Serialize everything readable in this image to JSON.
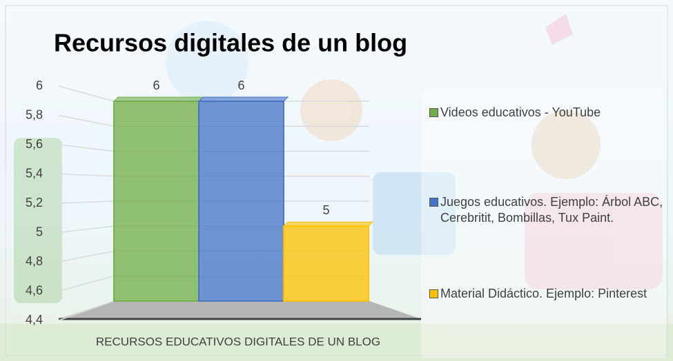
{
  "chart_data": {
    "type": "bar3d",
    "title": "Recursos digitales de un blog",
    "categories": [
      "RECURSOS EDUCATIVOS DIGITALES DE UN BLOG"
    ],
    "series": [
      {
        "name": "Videos educativos - YouTube",
        "color": "#70ad47",
        "values": [
          6
        ]
      },
      {
        "name": "Juegos educativos. Ejemplo: Árbol ABC, Cerebritit, Bombillas, Tux Paint.",
        "color": "#4472c4",
        "values": [
          6
        ]
      },
      {
        "name": "Material Didáctico. Ejemplo: Pinterest",
        "color": "#ffc000",
        "values": [
          5
        ]
      }
    ],
    "ylim": [
      4.4,
      6
    ],
    "yticks": [
      {
        "value": 4.4,
        "label": "4,4"
      },
      {
        "value": 4.6,
        "label": "4,6"
      },
      {
        "value": 4.8,
        "label": "4,8"
      },
      5,
      {
        "value": 5.2,
        "label": "5,2"
      },
      {
        "value": 5.4,
        "label": "5,4"
      },
      {
        "value": 5.6,
        "label": "5,6"
      },
      {
        "value": 5.8,
        "label": "5,8"
      },
      6
    ],
    "grid": true,
    "legend": "right"
  }
}
